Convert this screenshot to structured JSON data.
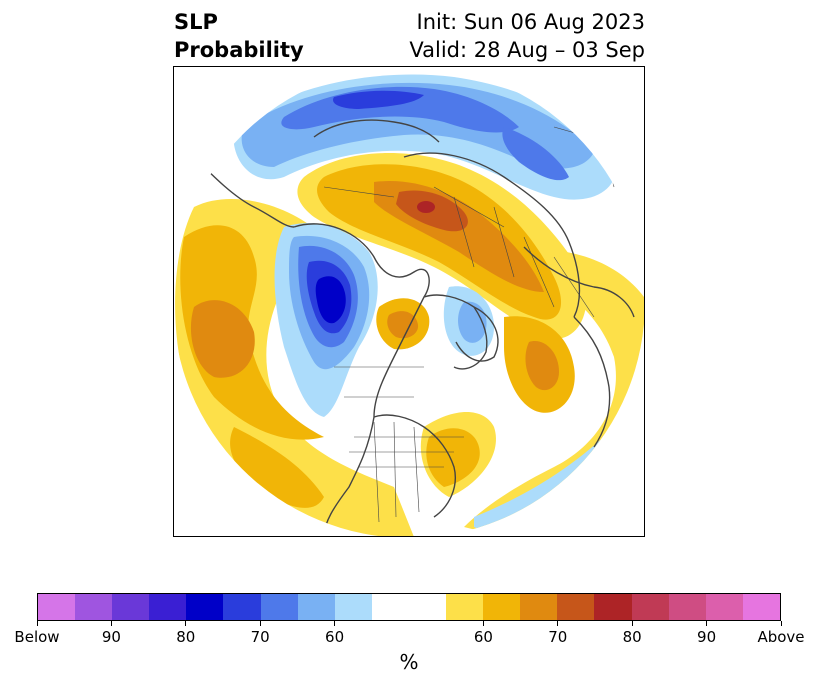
{
  "title": {
    "left_line1": "SLP",
    "left_line2": "Probability",
    "right_line1": "Init: Sun 06 Aug 2023",
    "right_line2": "Valid: 28 Aug – 03 Sep"
  },
  "colorbar": {
    "unit": "%",
    "below_colors": [
      "#d575e8",
      "#9f55e0",
      "#6a38d8",
      "#3a1fd3",
      "#0000c8",
      "#2a3ddc",
      "#4e79ea",
      "#79b1f3",
      "#acdcfb"
    ],
    "neutral_color": "#ffffff",
    "above_colors": [
      "#fde049",
      "#f1b507",
      "#e08a10",
      "#c6561a",
      "#ad2426",
      "#c03a55",
      "#cf4d83",
      "#dc5fac",
      "#e675e0"
    ],
    "tick_labels": [
      "Below",
      "90",
      "80",
      "70",
      "60",
      "60",
      "70",
      "80",
      "90",
      "Above"
    ]
  },
  "map": {
    "projection": "north-polar-stereographic",
    "field": "SLP probability",
    "regions": [
      {
        "name": "blue-arctic-belt",
        "category": "below",
        "level": "60-70"
      },
      {
        "name": "blue-canada-low",
        "category": "below",
        "level": "80-90"
      },
      {
        "name": "orange-siberia-high",
        "category": "above",
        "level": "70-80"
      },
      {
        "name": "red-siberia-core",
        "category": "above",
        "level": "80"
      },
      {
        "name": "orange-north-pacific-high",
        "category": "above",
        "level": "60-70"
      },
      {
        "name": "orange-eastern-us",
        "category": "above",
        "level": "60"
      },
      {
        "name": "orange-north-atlantic",
        "category": "above",
        "level": "60-70"
      },
      {
        "name": "yellow-ring",
        "category": "above",
        "level": "50-60"
      }
    ]
  }
}
